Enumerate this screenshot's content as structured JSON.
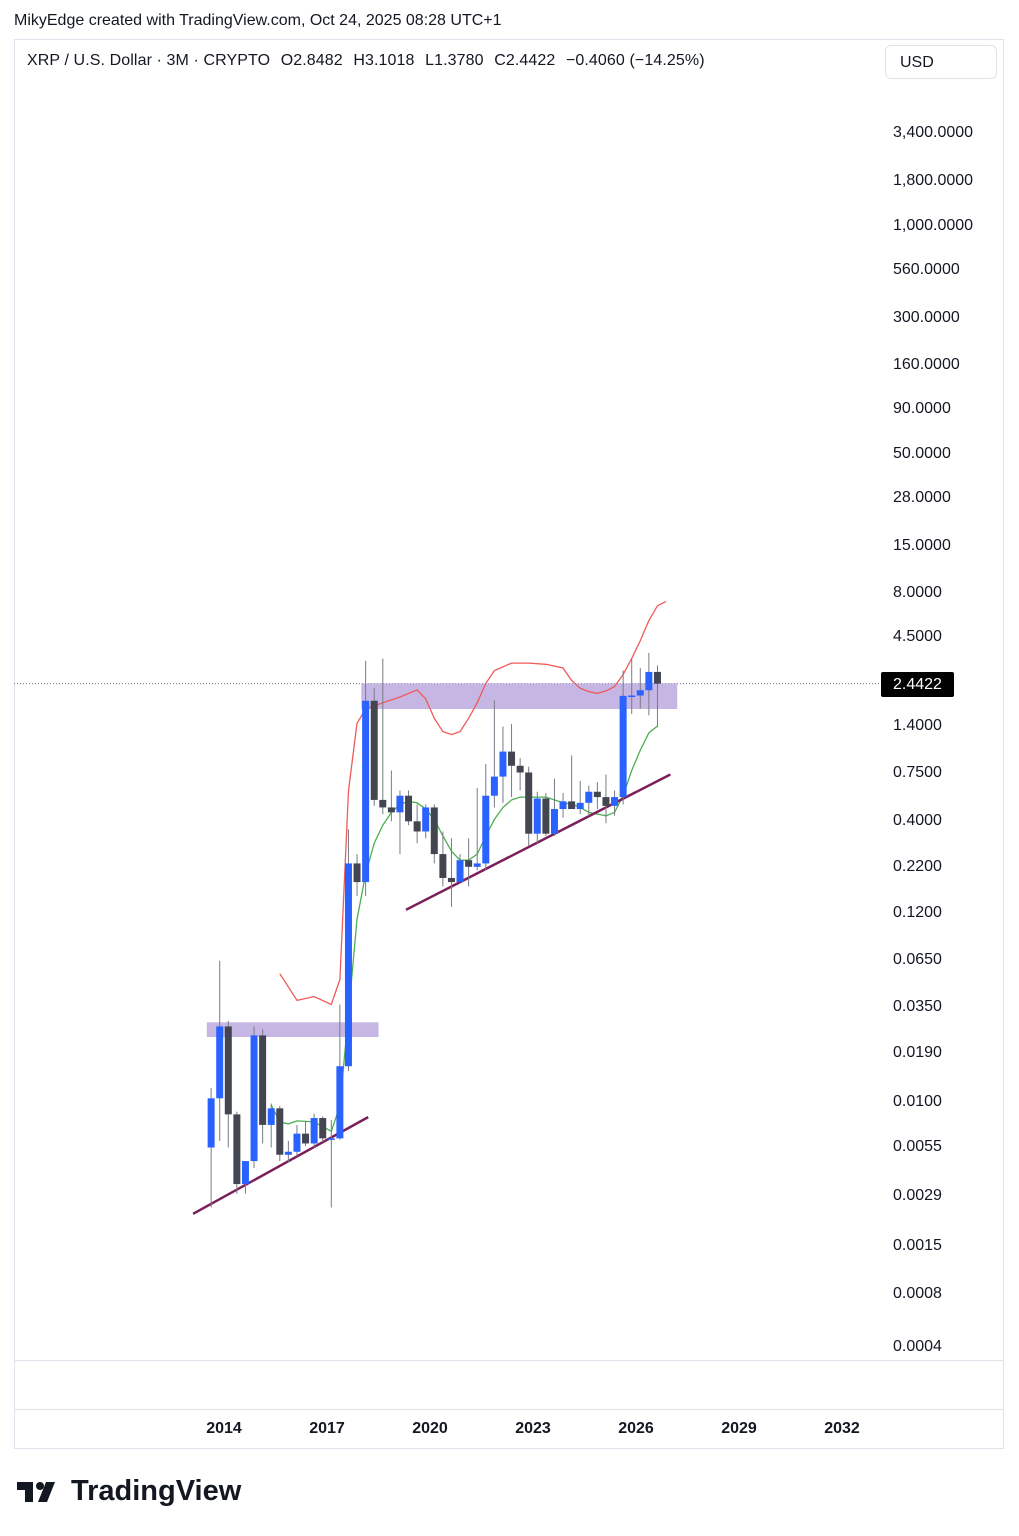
{
  "header": {
    "credit": "MikyEdge created with TradingView.com, Oct 24, 2025 08:28 UTC+1",
    "symbol": "XRP / U.S. Dollar · 3M · CRYPTO",
    "open": "O2.8482",
    "high": "H3.1018",
    "low": "L1.3780",
    "close": "C2.4422",
    "change": "−0.4060 (−14.25%)",
    "currency": "USD"
  },
  "last_price_label": "2.4422",
  "brand": "TradingView",
  "chart_data": {
    "type": "candlestick",
    "y_scale": "log",
    "ylim": [
      0.0003,
      6500
    ],
    "y_ticks": [
      "3,400.0000",
      "1,800.0000",
      "1,000.0000",
      "560.0000",
      "300.0000",
      "160.0000",
      "90.0000",
      "50.0000",
      "28.0000",
      "15.0000",
      "8.0000",
      "4.5000",
      "1.4000",
      "0.7500",
      "0.4000",
      "0.2200",
      "0.1200",
      "0.0650",
      "0.0350",
      "0.0190",
      "0.0100",
      "0.0055",
      "0.0029",
      "0.0015",
      "0.0008",
      "0.0004"
    ],
    "x_ticks": [
      "2014",
      "2017",
      "2020",
      "2023",
      "2026",
      "2029",
      "2032"
    ],
    "x_range": [
      2008.1,
      2033.9
    ],
    "candles": [
      {
        "t": 2013.625,
        "o": 0.0055,
        "h": 0.012,
        "l": 0.0025,
        "c": 0.0105
      },
      {
        "t": 2013.875,
        "o": 0.0105,
        "h": 0.064,
        "l": 0.006,
        "c": 0.027
      },
      {
        "t": 2014.125,
        "o": 0.027,
        "h": 0.029,
        "l": 0.0055,
        "c": 0.0085
      },
      {
        "t": 2014.375,
        "o": 0.0085,
        "h": 0.0088,
        "l": 0.003,
        "c": 0.0034
      },
      {
        "t": 2014.625,
        "o": 0.0034,
        "h": 0.0046,
        "l": 0.003,
        "c": 0.0046
      },
      {
        "t": 2014.875,
        "o": 0.0046,
        "h": 0.027,
        "l": 0.0042,
        "c": 0.024
      },
      {
        "t": 2015.125,
        "o": 0.024,
        "h": 0.026,
        "l": 0.0058,
        "c": 0.0074
      },
      {
        "t": 2015.375,
        "o": 0.0074,
        "h": 0.0098,
        "l": 0.0055,
        "c": 0.0092
      },
      {
        "t": 2015.625,
        "o": 0.0092,
        "h": 0.0095,
        "l": 0.0046,
        "c": 0.005
      },
      {
        "t": 2015.875,
        "o": 0.005,
        "h": 0.006,
        "l": 0.0045,
        "c": 0.0052
      },
      {
        "t": 2016.125,
        "o": 0.0052,
        "h": 0.0074,
        "l": 0.0049,
        "c": 0.0066
      },
      {
        "t": 2016.375,
        "o": 0.0066,
        "h": 0.0078,
        "l": 0.0056,
        "c": 0.0058
      },
      {
        "t": 2016.625,
        "o": 0.0058,
        "h": 0.0086,
        "l": 0.0055,
        "c": 0.0081
      },
      {
        "t": 2016.875,
        "o": 0.0081,
        "h": 0.0083,
        "l": 0.0059,
        "c": 0.0062
      },
      {
        "t": 2017.125,
        "o": 0.0062,
        "h": 0.0079,
        "l": 0.0025,
        "c": 0.0062
      },
      {
        "t": 2017.375,
        "o": 0.0062,
        "h": 0.036,
        "l": 0.0061,
        "c": 0.016
      },
      {
        "t": 2017.625,
        "o": 0.016,
        "h": 0.36,
        "l": 0.015,
        "c": 0.23
      },
      {
        "t": 2017.875,
        "o": 0.23,
        "h": 0.26,
        "l": 0.15,
        "c": 0.18
      },
      {
        "t": 2018.125,
        "o": 0.18,
        "h": 3.3,
        "l": 0.15,
        "c": 1.95
      },
      {
        "t": 2018.375,
        "o": 1.95,
        "h": 2.3,
        "l": 0.49,
        "c": 0.53
      },
      {
        "t": 2018.625,
        "o": 0.53,
        "h": 3.4,
        "l": 0.44,
        "c": 0.48
      },
      {
        "t": 2018.875,
        "o": 0.48,
        "h": 0.78,
        "l": 0.4,
        "c": 0.45
      },
      {
        "t": 2019.125,
        "o": 0.45,
        "h": 0.6,
        "l": 0.26,
        "c": 0.56
      },
      {
        "t": 2019.375,
        "o": 0.56,
        "h": 0.6,
        "l": 0.38,
        "c": 0.4
      },
      {
        "t": 2019.625,
        "o": 0.4,
        "h": 0.5,
        "l": 0.3,
        "c": 0.35
      },
      {
        "t": 2019.875,
        "o": 0.35,
        "h": 0.5,
        "l": 0.32,
        "c": 0.48
      },
      {
        "t": 2020.125,
        "o": 0.48,
        "h": 0.5,
        "l": 0.23,
        "c": 0.26
      },
      {
        "t": 2020.375,
        "o": 0.26,
        "h": 0.35,
        "l": 0.17,
        "c": 0.19
      },
      {
        "t": 2020.625,
        "o": 0.19,
        "h": 0.32,
        "l": 0.13,
        "c": 0.18
      },
      {
        "t": 2020.875,
        "o": 0.18,
        "h": 0.26,
        "l": 0.18,
        "c": 0.24
      },
      {
        "t": 2021.125,
        "o": 0.24,
        "h": 0.32,
        "l": 0.17,
        "c": 0.22
      },
      {
        "t": 2021.375,
        "o": 0.22,
        "h": 0.62,
        "l": 0.21,
        "c": 0.23
      },
      {
        "t": 2021.625,
        "o": 0.23,
        "h": 0.85,
        "l": 0.21,
        "c": 0.56
      },
      {
        "t": 2021.875,
        "o": 0.56,
        "h": 1.96,
        "l": 0.48,
        "c": 0.72
      },
      {
        "t": 2022.125,
        "o": 0.72,
        "h": 1.39,
        "l": 0.51,
        "c": 1.0
      },
      {
        "t": 2022.375,
        "o": 1.0,
        "h": 1.44,
        "l": 0.55,
        "c": 0.83
      },
      {
        "t": 2022.625,
        "o": 0.83,
        "h": 0.92,
        "l": 0.6,
        "c": 0.76
      },
      {
        "t": 2022.875,
        "o": 0.76,
        "h": 0.82,
        "l": 0.29,
        "c": 0.34
      },
      {
        "t": 2023.125,
        "o": 0.34,
        "h": 0.59,
        "l": 0.3,
        "c": 0.54
      },
      {
        "t": 2023.375,
        "o": 0.54,
        "h": 0.58,
        "l": 0.33,
        "c": 0.34
      },
      {
        "t": 2023.625,
        "o": 0.34,
        "h": 0.7,
        "l": 0.33,
        "c": 0.47
      },
      {
        "t": 2023.875,
        "o": 0.47,
        "h": 0.58,
        "l": 0.42,
        "c": 0.52
      },
      {
        "t": 2024.125,
        "o": 0.52,
        "h": 0.95,
        "l": 0.47,
        "c": 0.47
      },
      {
        "t": 2024.375,
        "o": 0.47,
        "h": 0.68,
        "l": 0.44,
        "c": 0.51
      },
      {
        "t": 2024.625,
        "o": 0.51,
        "h": 0.64,
        "l": 0.43,
        "c": 0.59
      },
      {
        "t": 2024.875,
        "o": 0.59,
        "h": 0.67,
        "l": 0.47,
        "c": 0.55
      },
      {
        "t": 2025.125,
        "o": 0.55,
        "h": 0.74,
        "l": 0.39,
        "c": 0.49
      },
      {
        "t": 2025.375,
        "o": 0.49,
        "h": 0.6,
        "l": 0.43,
        "c": 0.55
      },
      {
        "t": 2025.625,
        "o": 0.55,
        "h": 2.91,
        "l": 0.5,
        "c": 2.08
      },
      {
        "t": 2025.875,
        "o": 2.08,
        "h": 3.4,
        "l": 1.64,
        "c": 2.09
      },
      {
        "t": 2026.125,
        "o": 2.09,
        "h": 3.0,
        "l": 1.76,
        "c": 2.24
      },
      {
        "t": 2026.375,
        "o": 2.24,
        "h": 3.66,
        "l": 1.61,
        "c": 2.85
      },
      {
        "t": 2026.625,
        "o": 2.85,
        "h": 3.1018,
        "l": 1.378,
        "c": 2.4422
      }
    ],
    "upper_band": [
      [
        2015.625,
        0.054
      ],
      [
        2016.125,
        0.038
      ],
      [
        2016.625,
        0.04
      ],
      [
        2017.125,
        0.036
      ],
      [
        2017.375,
        0.05
      ],
      [
        2017.625,
        0.6
      ],
      [
        2017.875,
        1.45
      ],
      [
        2018.125,
        1.75
      ],
      [
        2018.625,
        1.9
      ],
      [
        2019.125,
        2.05
      ],
      [
        2019.625,
        2.25
      ],
      [
        2019.875,
        2.0
      ],
      [
        2020.125,
        1.55
      ],
      [
        2020.375,
        1.3
      ],
      [
        2020.625,
        1.25
      ],
      [
        2020.875,
        1.3
      ],
      [
        2021.125,
        1.55
      ],
      [
        2021.375,
        1.9
      ],
      [
        2021.625,
        2.45
      ],
      [
        2021.875,
        2.9
      ],
      [
        2022.375,
        3.2
      ],
      [
        2022.875,
        3.2
      ],
      [
        2023.375,
        3.15
      ],
      [
        2023.875,
        3.0
      ],
      [
        2024.125,
        2.55
      ],
      [
        2024.375,
        2.3
      ],
      [
        2024.625,
        2.2
      ],
      [
        2024.875,
        2.15
      ],
      [
        2025.125,
        2.22
      ],
      [
        2025.375,
        2.35
      ],
      [
        2025.625,
        2.75
      ],
      [
        2025.875,
        3.4
      ],
      [
        2026.125,
        4.3
      ],
      [
        2026.375,
        5.6
      ],
      [
        2026.625,
        6.8
      ],
      [
        2026.875,
        7.2
      ]
    ],
    "lower_band": [
      [
        2015.375,
        0.0096
      ],
      [
        2015.625,
        0.0077
      ],
      [
        2015.875,
        0.0075
      ],
      [
        2016.125,
        0.0078
      ],
      [
        2016.625,
        0.0077
      ],
      [
        2017.125,
        0.0068
      ],
      [
        2017.375,
        0.0095
      ],
      [
        2017.625,
        0.032
      ],
      [
        2017.875,
        0.11
      ],
      [
        2018.125,
        0.2
      ],
      [
        2018.375,
        0.3
      ],
      [
        2018.625,
        0.38
      ],
      [
        2018.875,
        0.45
      ],
      [
        2019.125,
        0.5
      ],
      [
        2019.375,
        0.52
      ],
      [
        2019.625,
        0.51
      ],
      [
        2019.875,
        0.47
      ],
      [
        2020.125,
        0.41
      ],
      [
        2020.375,
        0.33
      ],
      [
        2020.625,
        0.27
      ],
      [
        2020.875,
        0.24
      ],
      [
        2021.125,
        0.24
      ],
      [
        2021.375,
        0.26
      ],
      [
        2021.625,
        0.33
      ],
      [
        2021.875,
        0.41
      ],
      [
        2022.125,
        0.48
      ],
      [
        2022.375,
        0.53
      ],
      [
        2022.625,
        0.55
      ],
      [
        2022.875,
        0.55
      ],
      [
        2023.375,
        0.55
      ],
      [
        2023.625,
        0.53
      ],
      [
        2023.875,
        0.51
      ],
      [
        2024.125,
        0.5
      ],
      [
        2024.375,
        0.48
      ],
      [
        2024.625,
        0.45
      ],
      [
        2024.875,
        0.44
      ],
      [
        2025.125,
        0.43
      ],
      [
        2025.375,
        0.45
      ],
      [
        2025.625,
        0.56
      ],
      [
        2025.875,
        0.78
      ],
      [
        2026.125,
        1.02
      ],
      [
        2026.375,
        1.28
      ],
      [
        2026.625,
        1.4
      ]
    ],
    "resistance_zones": [
      {
        "t0": 2013.5,
        "t1": 2018.5,
        "lo": 0.0235,
        "hi": 0.0285
      },
      {
        "t0": 2018.0,
        "t1": 2027.2,
        "lo": 1.75,
        "hi": 2.45
      }
    ],
    "trendlines": [
      {
        "t0": 2013.1,
        "v0": 0.0023,
        "t1": 2018.2,
        "v1": 0.0082
      },
      {
        "t0": 2019.3,
        "v0": 0.125,
        "t1": 2027.0,
        "v1": 0.74
      }
    ],
    "last_price": 2.4422,
    "colors": {
      "up": "#2962ff",
      "down": "#434651",
      "wick": "#787b86",
      "upper_band": "#f05a5a",
      "lower_band": "#4caf50",
      "zone": "#b39ddb",
      "trendline": "#7b1f5a",
      "fill": "#fff3c9"
    }
  }
}
